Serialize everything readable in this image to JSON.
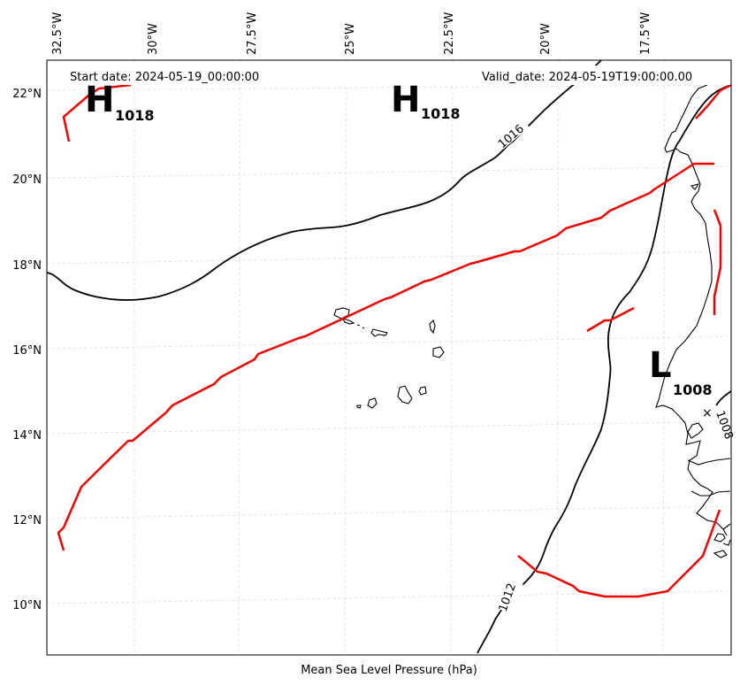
{
  "header": {
    "start_date": "Start date: 2024-05-19_00:00:00",
    "valid_date": "Valid_date: 2024-05-19T19:00:00.00"
  },
  "xlabel": "Mean Sea Level Pressure (hPa)",
  "lon_ticks": [
    "32.5°W",
    "30°W",
    "27.5°W",
    "25°W",
    "22.5°W",
    "20°W",
    "17.5°W"
  ],
  "lat_ticks": [
    "22°N",
    "20°N",
    "18°N",
    "16°N",
    "14°N",
    "12°N",
    "10°N"
  ],
  "pressure_centers": [
    {
      "symbol": "H",
      "value": "1018"
    },
    {
      "symbol": "H",
      "value": "1018"
    },
    {
      "symbol": "L",
      "value": "1008"
    }
  ],
  "contour_labels": [
    "1016",
    "1012",
    "1008"
  ],
  "colors": {
    "front": "#ee0000",
    "isobar": "#000000",
    "grid": "#d9d9d9",
    "coast": "#000000"
  }
}
